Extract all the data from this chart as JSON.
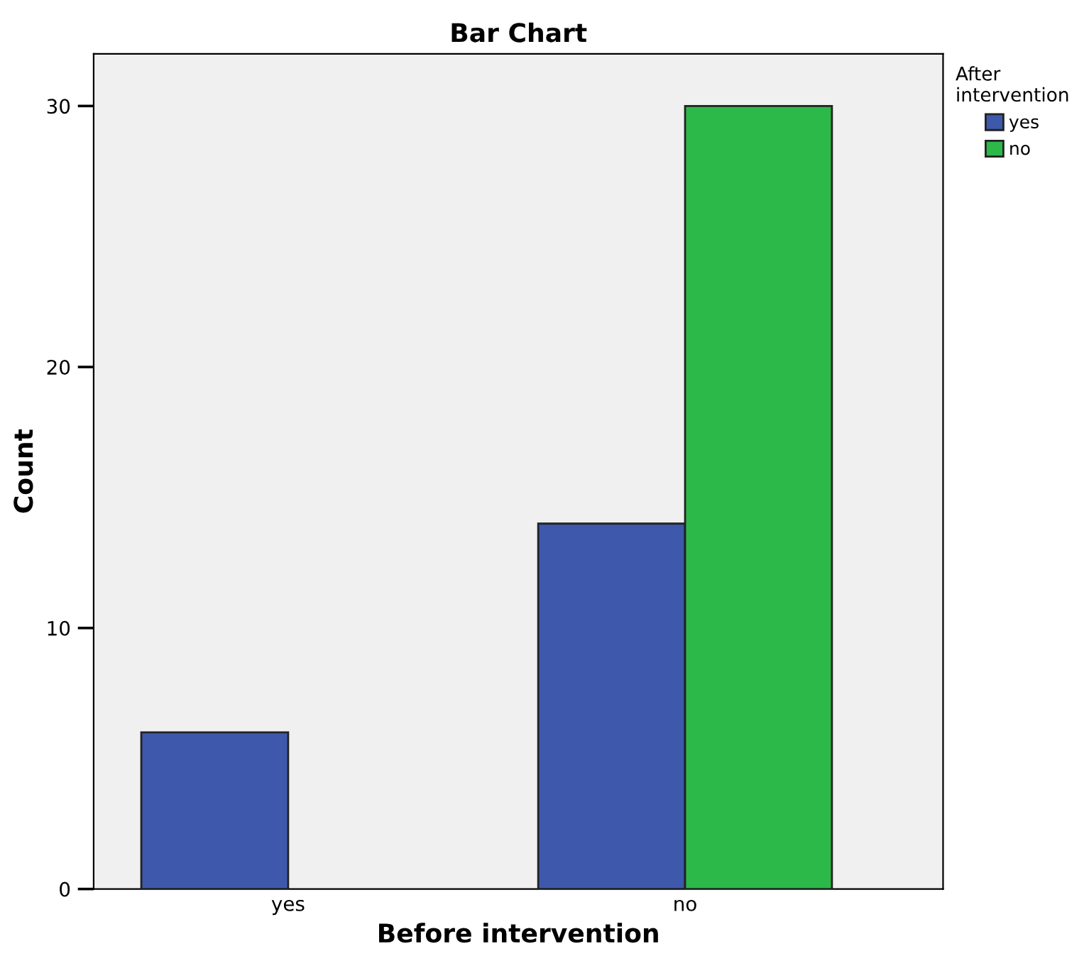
{
  "chart_data": {
    "type": "bar",
    "title": "Bar Chart",
    "xlabel": "Before intervention",
    "ylabel": "Count",
    "categories": [
      "yes",
      "no"
    ],
    "series": [
      {
        "name": "yes",
        "color": "#3e58ac",
        "values": [
          6,
          14
        ]
      },
      {
        "name": "no",
        "color": "#2db84a",
        "values": [
          null,
          30
        ]
      }
    ],
    "legend_title": "After intervention",
    "legend": "top right",
    "ylim": [
      0,
      32
    ],
    "yticks": [
      0,
      10,
      20,
      30
    ],
    "grid": false
  }
}
